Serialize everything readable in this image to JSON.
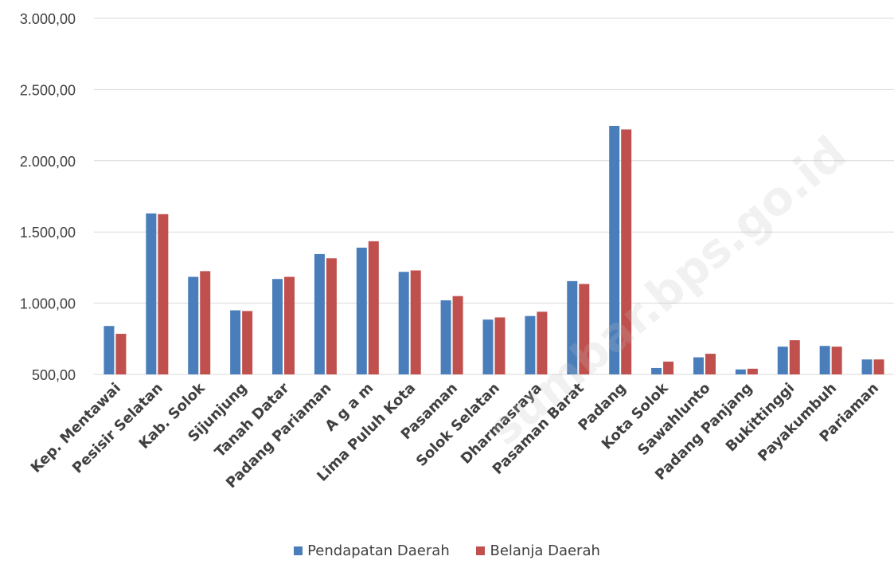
{
  "chart_data": {
    "type": "bar",
    "categories": [
      "Kep. Mentawai",
      "Pesisir Selatan",
      "Kab. Solok",
      "Sijunjung",
      "Tanah Datar",
      "Padang Pariaman",
      "A g a m",
      "Lima Puluh Kota",
      "Pasaman",
      "Solok Selatan",
      "Dharmasraya",
      "Pasaman Barat",
      "Padang",
      "Kota Solok",
      "Sawahlunto",
      "Padang Panjang",
      "Bukittinggi",
      "Payakumbuh",
      "Pariaman"
    ],
    "series": [
      {
        "name": "Pendapatan Daerah",
        "color": "#4a7ebb",
        "values": [
          840,
          1630,
          1185,
          950,
          1170,
          1345,
          1390,
          1220,
          1020,
          885,
          910,
          1155,
          2245,
          545,
          620,
          535,
          695,
          700,
          605
        ]
      },
      {
        "name": "Belanja Daerah",
        "color": "#c0504d",
        "values": [
          785,
          1625,
          1225,
          945,
          1185,
          1315,
          1435,
          1230,
          1050,
          900,
          940,
          1135,
          2220,
          590,
          645,
          540,
          740,
          695,
          605
        ]
      }
    ],
    "ylim": [
      500,
      3000
    ],
    "yticks": [
      "500,00",
      "1.000,00",
      "1.500,00",
      "2.000,00",
      "2.500,00",
      "3.000,00"
    ],
    "grid": true,
    "legend_position": "bottom"
  },
  "watermark": "sumbar.bps.go.id"
}
